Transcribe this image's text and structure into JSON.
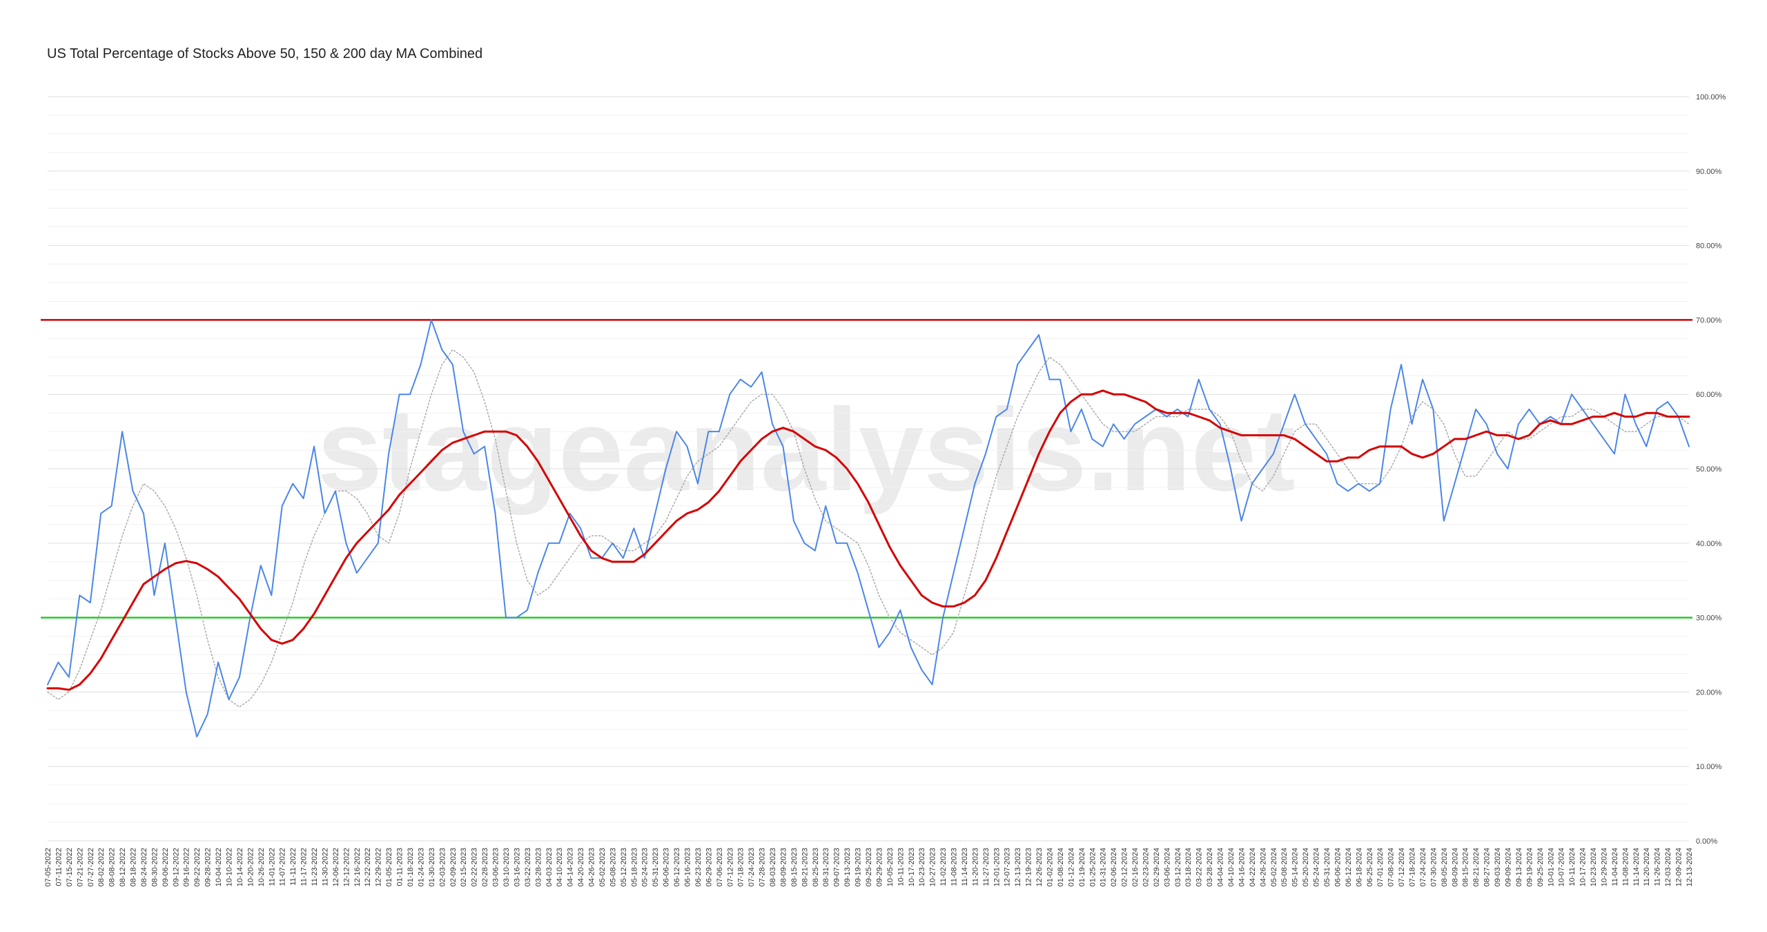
{
  "chart_data": {
    "type": "line",
    "title": "US Total Percentage of Stocks Above 50, 150 & 200 day MA Combined",
    "watermark": "stageanalysis.net",
    "categories": [
      "07-05-2022",
      "07-11-2022",
      "07-15-2022",
      "07-21-2022",
      "07-27-2022",
      "08-02-2022",
      "08-08-2022",
      "08-12-2022",
      "08-18-2022",
      "08-24-2022",
      "08-30-2022",
      "09-06-2022",
      "09-12-2022",
      "09-16-2022",
      "09-22-2022",
      "09-28-2022",
      "10-04-2022",
      "10-10-2022",
      "10-14-2022",
      "10-20-2022",
      "10-26-2022",
      "11-01-2022",
      "11-07-2022",
      "11-11-2022",
      "11-17-2022",
      "11-23-2022",
      "11-30-2022",
      "12-06-2022",
      "12-12-2022",
      "12-16-2022",
      "12-22-2022",
      "12-29-2022",
      "01-05-2023",
      "01-11-2023",
      "01-18-2023",
      "01-24-2023",
      "01-30-2023",
      "02-03-2023",
      "02-09-2023",
      "02-15-2023",
      "02-22-2023",
      "02-28-2023",
      "03-06-2023",
      "03-10-2023",
      "03-16-2023",
      "03-22-2023",
      "03-28-2023",
      "04-03-2023",
      "04-10-2023",
      "04-14-2023",
      "04-20-2023",
      "04-26-2023",
      "05-02-2023",
      "05-08-2023",
      "05-12-2023",
      "05-18-2023",
      "05-24-2023",
      "05-31-2023",
      "06-06-2023",
      "06-12-2023",
      "06-16-2023",
      "06-23-2023",
      "06-29-2023",
      "07-06-2023",
      "07-12-2023",
      "07-18-2023",
      "07-24-2023",
      "07-28-2023",
      "08-03-2023",
      "08-09-2023",
      "08-15-2023",
      "08-21-2023",
      "08-25-2023",
      "08-31-2023",
      "09-07-2023",
      "09-13-2023",
      "09-19-2023",
      "09-25-2023",
      "09-29-2023",
      "10-05-2023",
      "10-11-2023",
      "10-17-2023",
      "10-23-2023",
      "10-27-2023",
      "11-02-2023",
      "11-08-2023",
      "11-14-2023",
      "11-20-2023",
      "11-27-2023",
      "12-01-2023",
      "12-07-2023",
      "12-13-2023",
      "12-19-2023",
      "12-26-2023",
      "01-02-2024",
      "01-08-2024",
      "01-12-2024",
      "01-19-2024",
      "01-25-2024",
      "01-31-2024",
      "02-06-2024",
      "02-12-2024",
      "02-16-2024",
      "02-23-2024",
      "02-29-2024",
      "03-06-2024",
      "03-12-2024",
      "03-18-2024",
      "03-22-2024",
      "03-28-2024",
      "04-04-2024",
      "04-10-2024",
      "04-16-2024",
      "04-22-2024",
      "04-26-2024",
      "05-02-2024",
      "05-08-2024",
      "05-14-2024",
      "05-20-2024",
      "05-24-2024",
      "05-31-2024",
      "06-06-2024",
      "06-12-2024",
      "06-18-2024",
      "06-25-2024",
      "07-01-2024",
      "07-08-2024",
      "07-12-2024",
      "07-18-2024",
      "07-24-2024",
      "07-30-2024",
      "08-05-2024",
      "08-09-2024",
      "08-15-2024",
      "08-21-2024",
      "08-27-2024",
      "09-03-2024",
      "09-09-2024",
      "09-13-2024",
      "09-19-2024",
      "09-25-2024",
      "10-01-2024",
      "10-07-2024",
      "10-11-2024",
      "10-17-2024",
      "10-23-2024",
      "10-29-2024",
      "11-04-2024",
      "11-08-2024",
      "11-14-2024",
      "11-20-2024",
      "11-26-2024",
      "12-03-2024",
      "12-09-2024",
      "12-13-2024"
    ],
    "series": [
      {
        "color": "#aaaaaa",
        "dash": "dotted",
        "values": [
          20,
          19,
          20,
          23,
          27,
          31,
          36,
          41,
          45,
          48,
          47,
          45,
          42,
          38,
          33,
          27,
          22,
          19,
          18,
          19,
          21,
          24,
          28,
          32,
          37,
          41,
          44,
          47,
          47,
          46,
          44,
          41,
          40,
          44,
          50,
          55,
          60,
          64,
          66,
          65,
          63,
          59,
          54,
          47,
          40,
          35,
          33,
          34,
          36,
          38,
          40,
          41,
          41,
          40,
          39,
          39,
          40,
          41,
          43,
          46,
          49,
          51,
          52,
          53,
          55,
          57,
          59,
          60,
          60,
          58,
          55,
          50,
          46,
          43,
          42,
          41,
          40,
          37,
          33,
          30,
          28,
          27,
          26,
          25,
          26,
          28,
          33,
          38,
          44,
          49,
          53,
          57,
          60,
          63,
          65,
          64,
          62,
          60,
          58,
          56,
          55,
          55,
          55,
          56,
          57,
          57,
          57,
          58,
          58,
          58,
          57,
          55,
          51,
          48,
          47,
          49,
          52,
          55,
          56,
          56,
          54,
          52,
          50,
          48,
          48,
          48,
          50,
          53,
          57,
          59,
          58,
          56,
          52,
          49,
          49,
          51,
          53,
          55,
          54,
          54,
          55,
          56,
          57,
          57,
          58,
          58,
          57,
          56,
          55,
          55,
          56,
          57,
          57,
          57,
          56
        ]
      },
      {
        "color": "#4a86e8",
        "values": [
          21,
          24,
          22,
          33,
          32,
          44,
          45,
          55,
          47,
          44,
          33,
          40,
          30,
          20,
          14,
          17,
          24,
          19,
          22,
          30,
          37,
          33,
          45,
          48,
          46,
          53,
          44,
          47,
          40,
          36,
          38,
          40,
          52,
          60,
          60,
          64,
          70,
          66,
          64,
          55,
          52,
          53,
          44,
          30,
          30,
          31,
          36,
          40,
          40,
          44,
          42,
          38,
          38,
          40,
          38,
          42,
          38,
          44,
          50,
          55,
          53,
          48,
          55,
          55,
          60,
          62,
          61,
          63,
          56,
          53,
          43,
          40,
          39,
          45,
          40,
          40,
          36,
          31,
          26,
          28,
          31,
          26,
          23,
          21,
          30,
          36,
          42,
          48,
          52,
          57,
          58,
          64,
          66,
          68,
          62,
          62,
          55,
          58,
          54,
          53,
          56,
          54,
          56,
          57,
          58,
          57,
          58,
          57,
          62,
          58,
          56,
          50,
          43,
          48,
          50,
          52,
          56,
          60,
          56,
          54,
          52,
          48,
          47,
          48,
          47,
          48,
          58,
          64,
          56,
          62,
          58,
          43,
          48,
          53,
          58,
          56,
          52,
          50,
          56,
          58,
          56,
          57,
          56,
          60,
          58,
          56,
          54,
          52,
          60,
          56,
          53,
          58,
          59,
          57,
          53
        ]
      },
      {
        "color": "#d50000",
        "width": 3,
        "values": [
          20.5,
          20.5,
          20.3,
          21,
          22.5,
          24.5,
          27,
          29.5,
          32,
          34.5,
          35.5,
          36.5,
          37.3,
          37.6,
          37.3,
          36.5,
          35.5,
          34,
          32.5,
          30.5,
          28.5,
          27,
          26.5,
          27,
          28.5,
          30.5,
          33,
          35.5,
          38,
          40,
          41.5,
          43,
          44.5,
          46.5,
          48,
          49.5,
          51,
          52.5,
          53.5,
          54,
          54.5,
          55,
          55,
          55,
          54.5,
          53,
          51,
          48.5,
          46,
          43.5,
          41,
          39,
          38,
          37.5,
          37.5,
          37.5,
          38.5,
          40,
          41.5,
          43,
          44,
          44.5,
          45.5,
          47,
          49,
          51,
          52.5,
          54,
          55,
          55.5,
          55,
          54,
          53,
          52.5,
          51.5,
          50,
          48,
          45.5,
          42.5,
          39.5,
          37,
          35,
          33,
          32,
          31.5,
          31.5,
          32,
          33,
          35,
          38,
          41.5,
          45,
          48.5,
          52,
          55,
          57.5,
          59,
          60,
          60,
          60.5,
          60,
          60,
          59.5,
          59,
          58,
          57.5,
          57.5,
          57.5,
          57,
          56.5,
          55.5,
          55,
          54.5,
          54.5,
          54.5,
          54.5,
          54.5,
          54,
          53,
          52,
          51,
          51,
          51.5,
          51.5,
          52.5,
          53,
          53,
          53,
          52,
          51.5,
          52,
          53,
          54,
          54,
          54.5,
          55,
          54.5,
          54.5,
          54,
          54.5,
          56,
          56.5,
          56,
          56,
          56.5,
          57,
          57,
          57.5,
          57,
          57,
          57.5,
          57.5,
          57,
          57,
          57
        ]
      }
    ],
    "reference_lines": [
      {
        "value": 70,
        "color": "#cc0000"
      },
      {
        "value": 30,
        "color": "#22cc22"
      }
    ],
    "ylim": [
      0,
      100
    ],
    "yticks": [
      {
        "value": 0,
        "label": "0.00%"
      },
      {
        "value": 10,
        "label": "10.00%"
      },
      {
        "value": 20,
        "label": "20.00%"
      },
      {
        "value": 30,
        "label": "30.00%"
      },
      {
        "value": 40,
        "label": "40.00%"
      },
      {
        "value": 50,
        "label": "50.00%"
      },
      {
        "value": 60,
        "label": "60.00%"
      },
      {
        "value": 70,
        "label": "70.00%"
      },
      {
        "value": 80,
        "label": "80.00%"
      },
      {
        "value": 90,
        "label": "90.00%"
      },
      {
        "value": 100,
        "label": "100.00%"
      }
    ],
    "minor_yticks": [
      2.5,
      5,
      7.5,
      12.5,
      15,
      17.5,
      22.5,
      25,
      27.5,
      32.5,
      35,
      37.5,
      42.5,
      45,
      47.5,
      52.5,
      55,
      57.5,
      62.5,
      65,
      67.5,
      72.5,
      75,
      77.5,
      82.5,
      85,
      87.5,
      92.5,
      95,
      97.5
    ],
    "grid": true,
    "y_axis_side": "right"
  }
}
